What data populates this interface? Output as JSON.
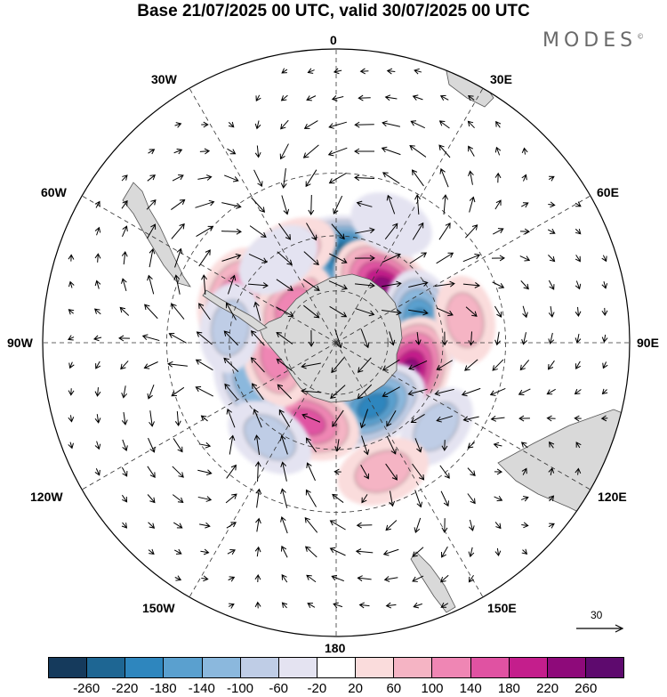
{
  "title": "Base 21/07/2025 00 UTC, valid 30/07/2025 00 UTC",
  "brand": "MODES",
  "brand_mark": "©",
  "longitude_labels": {
    "top": "0",
    "bottom": "180",
    "left": "90W",
    "right": "90E",
    "upper_left_outer": "60W",
    "upper_left_inner": "30W",
    "upper_right_inner": "30E",
    "upper_right_outer": "60E",
    "lower_left_outer": "120W",
    "lower_left_inner": "150W",
    "lower_right_inner": "150E",
    "lower_right_outer": "120E"
  },
  "reference_vector": "30",
  "colorbar": {
    "colors": [
      "#153a5c",
      "#1e6693",
      "#2e86be",
      "#5aa0cf",
      "#8bb8dd",
      "#bfcde6",
      "#e4e3f1",
      "#ffffff",
      "#fadcdc",
      "#f5b4c4",
      "#ef86b4",
      "#e052a2",
      "#c41e8c",
      "#8e0a7a",
      "#5e0a6e"
    ],
    "ticks": [
      "-260",
      "-220",
      "-180",
      "-140",
      "-100",
      "-60",
      "-20",
      "20",
      "60",
      "100",
      "140",
      "180",
      "220",
      "260"
    ]
  },
  "anomaly_centers": [
    {
      "lon": 10,
      "colat": 33,
      "value": -260
    },
    {
      "lon": 43,
      "colat": 28,
      "value": 240
    },
    {
      "lon": 78,
      "colat": 33,
      "value": -190
    },
    {
      "lon": 112,
      "colat": 30,
      "value": 220
    },
    {
      "lon": 150,
      "colat": 28,
      "value": -200
    },
    {
      "lon": -160,
      "colat": 32,
      "value": 170
    },
    {
      "lon": -115,
      "colat": 36,
      "value": -110
    },
    {
      "lon": -105,
      "colat": 24,
      "value": 110
    },
    {
      "lon": -65,
      "colat": 42,
      "value": 120
    },
    {
      "lon": -50,
      "colat": 22,
      "value": 100
    },
    {
      "lon": -82,
      "colat": 40,
      "value": -70
    },
    {
      "lon": -25,
      "colat": 38,
      "value": 70
    },
    {
      "lon": -35,
      "colat": 38,
      "value": -50
    },
    {
      "lon": -145,
      "colat": 43,
      "value": -80
    },
    {
      "lon": 130,
      "colat": 48,
      "value": -60
    },
    {
      "lon": 160,
      "colat": 50,
      "value": 90
    },
    {
      "lon": 25,
      "colat": 48,
      "value": -40
    },
    {
      "lon": 80,
      "colat": 48,
      "value": 60
    }
  ]
}
